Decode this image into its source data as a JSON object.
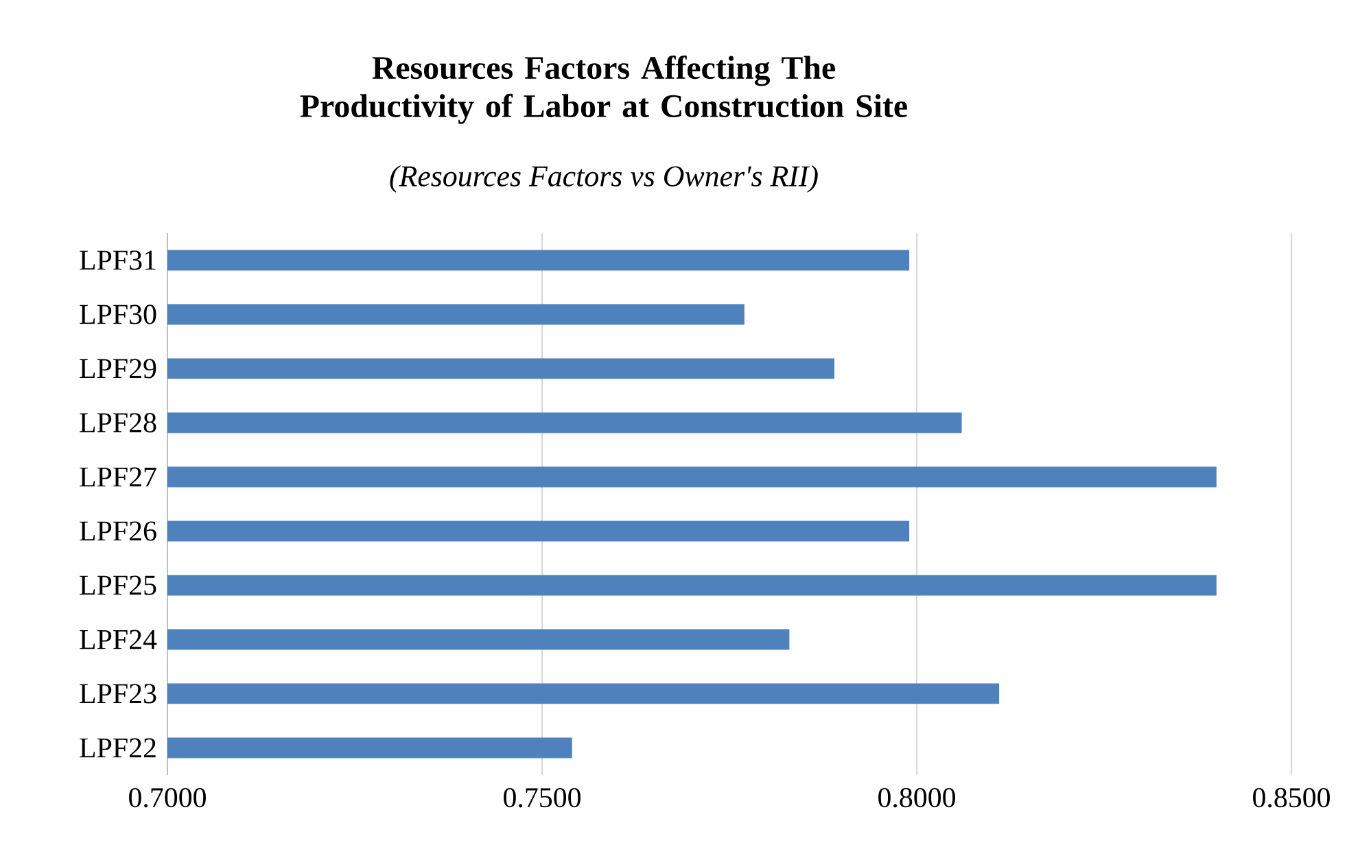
{
  "chart_data": {
    "type": "bar",
    "orientation": "horizontal",
    "title": "Resources Factors Affecting The Productivity of Labor at Construction Site",
    "subtitle": "(Resources Factors vs Owner's RII)",
    "categories": [
      "LPF31",
      "LPF30",
      "LPF29",
      "LPF28",
      "LPF27",
      "LPF26",
      "LPF25",
      "LPF24",
      "LPF23",
      "LPF22"
    ],
    "values": [
      0.799,
      0.777,
      0.789,
      0.806,
      0.84,
      0.799,
      0.84,
      0.783,
      0.811,
      0.754
    ],
    "color": "#4f81bd",
    "xlim": [
      0.7,
      0.85
    ],
    "xticks": [
      {
        "value": 0.7,
        "label": "0.7000"
      },
      {
        "value": 0.75,
        "label": "0.7500"
      },
      {
        "value": 0.8,
        "label": "0.8000"
      },
      {
        "value": 0.85,
        "label": "0.8500"
      }
    ],
    "grid": "x"
  }
}
